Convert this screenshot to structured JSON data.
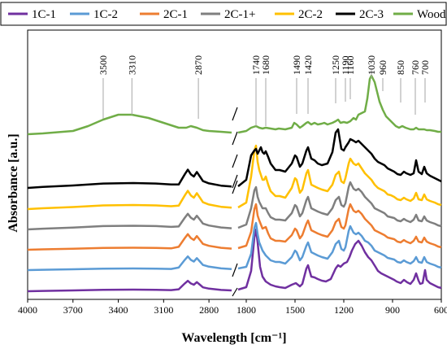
{
  "chart_data": {
    "type": "line",
    "xlabel": "Wavelength [cm⁻¹]",
    "ylabel": "Absorbance [a.u.]",
    "x_reversed": true,
    "axis_break": [
      2650,
      1850
    ],
    "segments": [
      [
        4000,
        2650
      ],
      [
        1850,
        600
      ]
    ],
    "x_ticks": [
      "4000",
      "3700",
      "3400",
      "3100",
      "2800",
      "1800",
      "1500",
      "1200",
      "900",
      "600"
    ],
    "x_tick_values": [
      4000,
      3700,
      3400,
      3100,
      2800,
      1800,
      1500,
      1200,
      900,
      600
    ],
    "legend_position": "top",
    "peak_labels": [
      "3500",
      "3310",
      "2870",
      "1740",
      "1680",
      "1490",
      "1420",
      "1250",
      "1190",
      "1160",
      "1030",
      "960",
      "850",
      "760",
      "700"
    ],
    "peak_values": [
      3500,
      3310,
      2870,
      1740,
      1680,
      1490,
      1420,
      1250,
      1190,
      1160,
      1030,
      960,
      850,
      760,
      700
    ],
    "series": [
      {
        "name": "1C-1",
        "color": "#7030a0"
      },
      {
        "name": "1C-2",
        "color": "#5b9bd5"
      },
      {
        "name": "2C-1",
        "color": "#ed7d31"
      },
      {
        "name": "2C-1+",
        "color": "#7f7f7f"
      },
      {
        "name": "2C-2",
        "color": "#ffc000"
      },
      {
        "name": "2C-3",
        "color": "#000000"
      },
      {
        "name": "Wood",
        "color": "#70ad47"
      }
    ]
  }
}
